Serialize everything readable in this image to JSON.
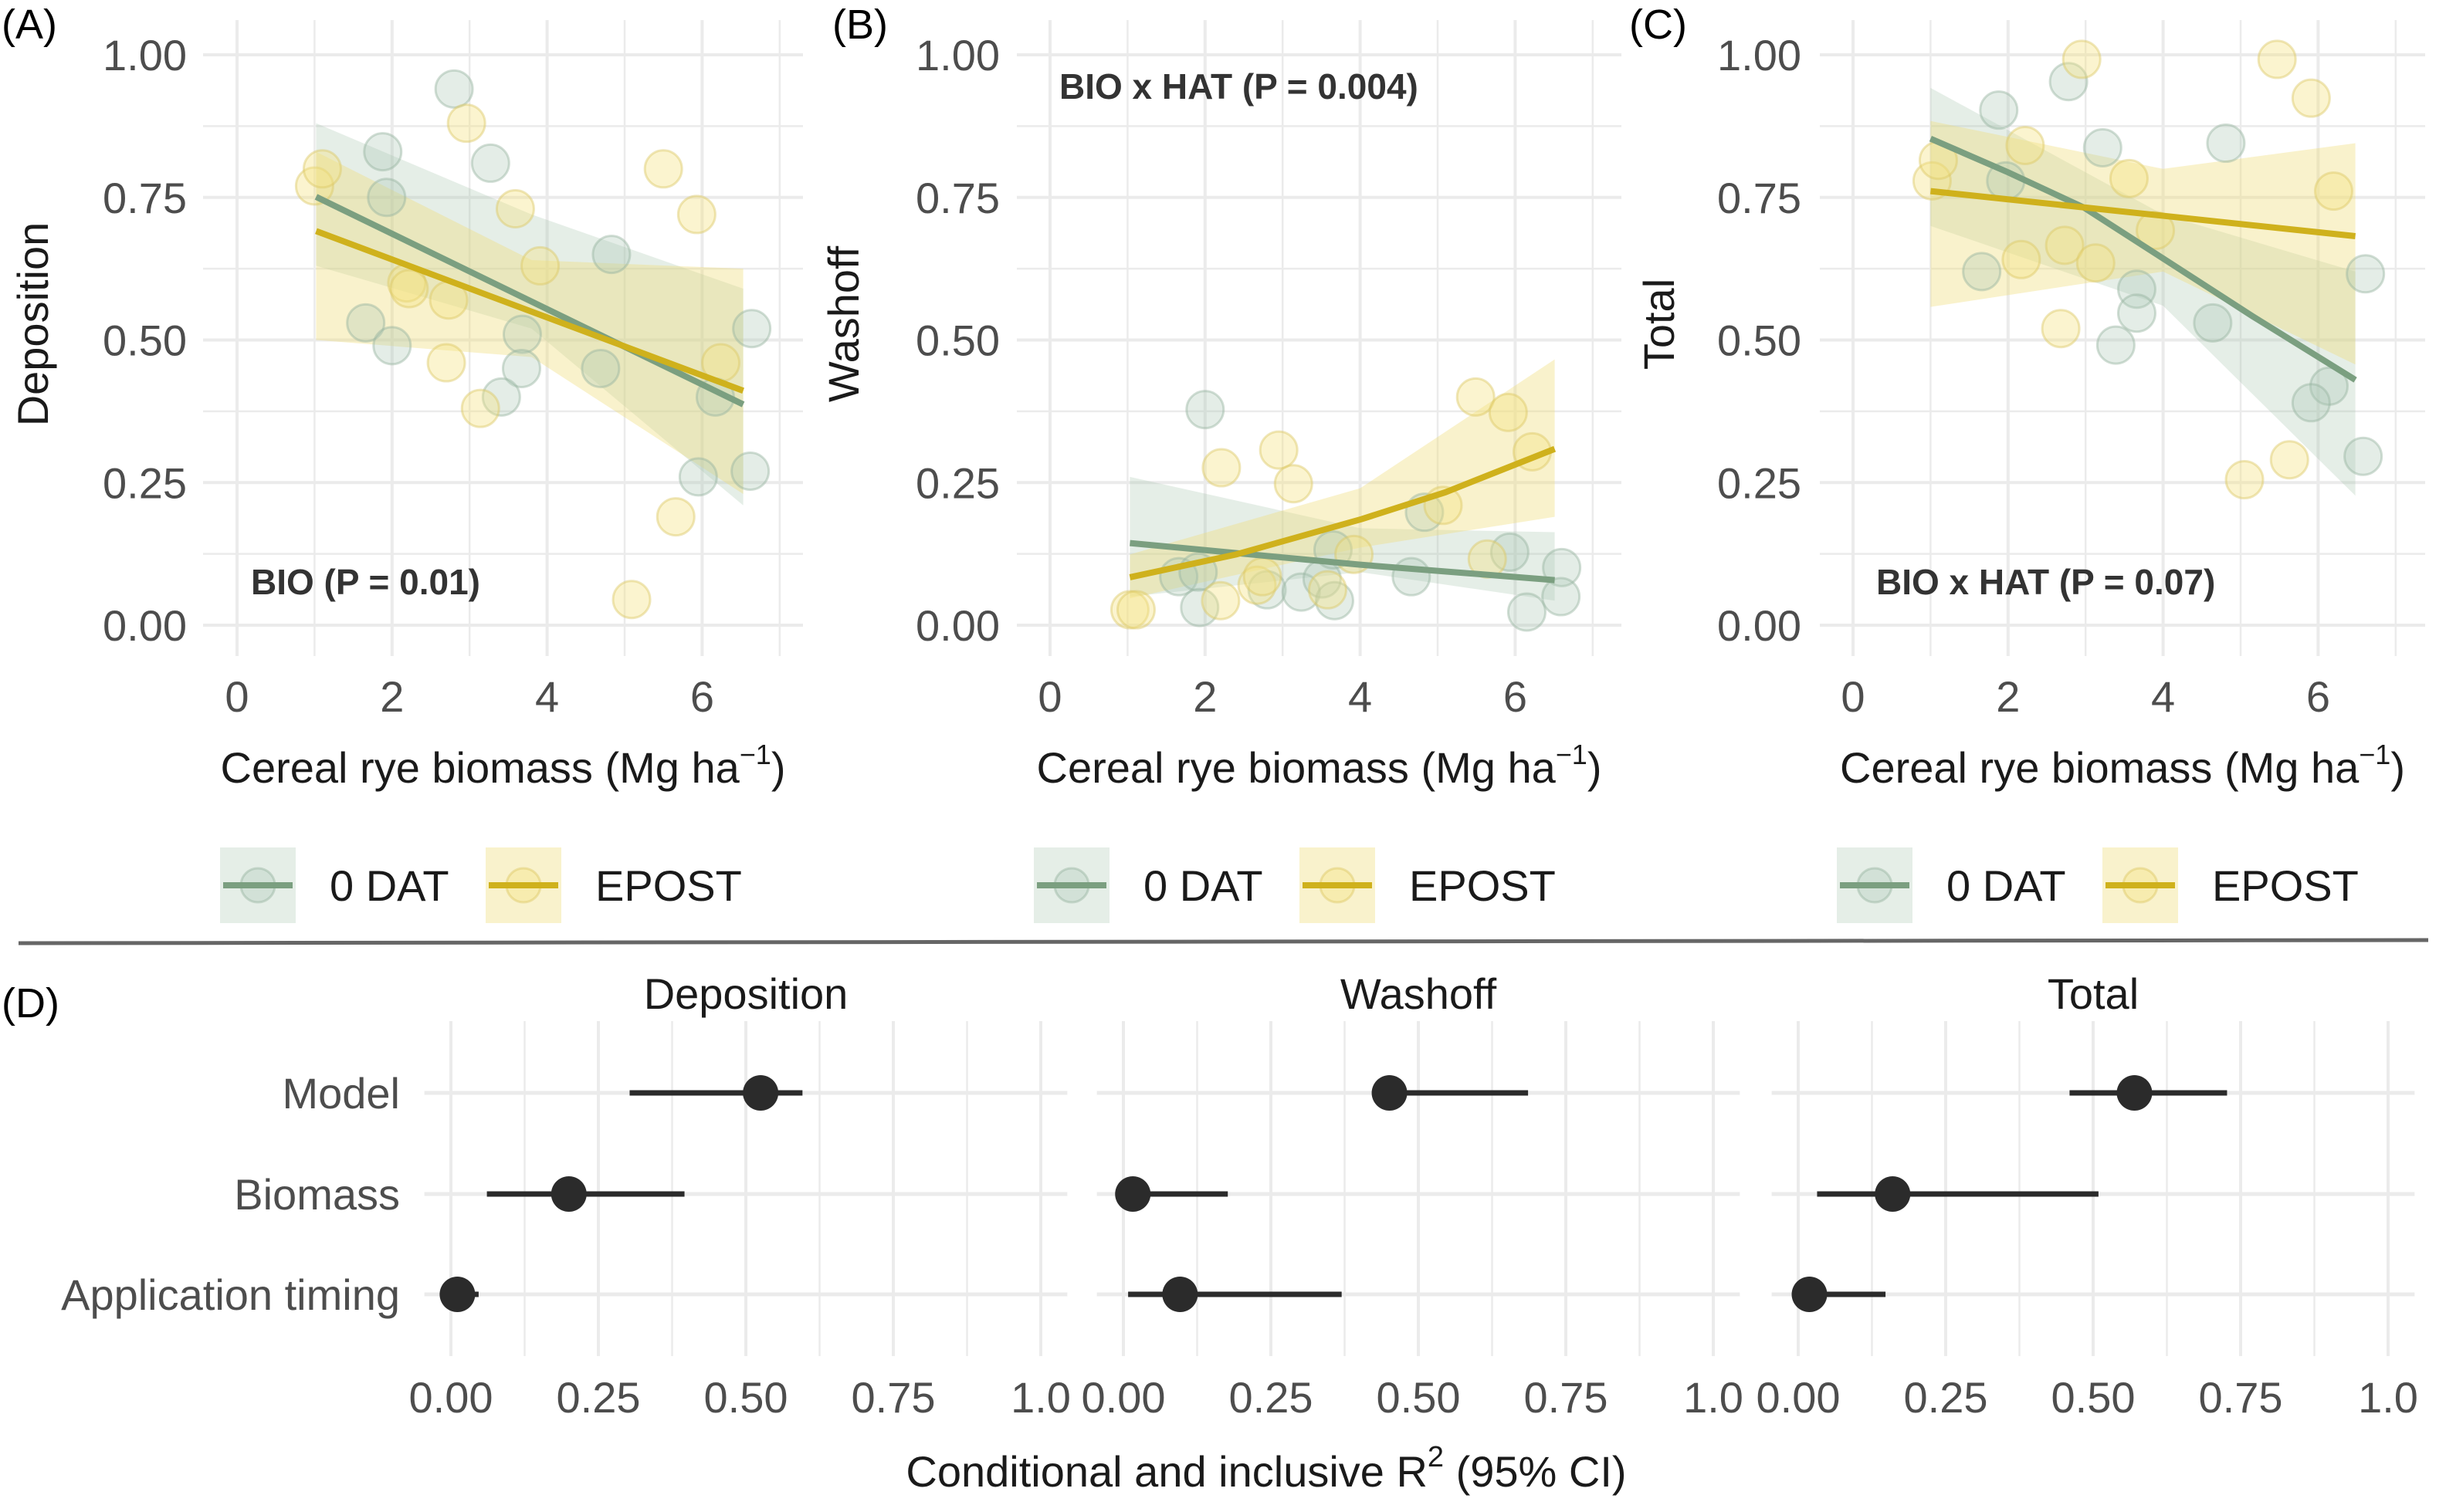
{
  "colors": {
    "0 DAT": "#7b9f80",
    "EPOST": "#cfb11c",
    "point_dark": "#2b2b2b",
    "grid": "#e6e6e6"
  },
  "legend": {
    "labels": [
      "0 DAT",
      "EPOST"
    ]
  },
  "chart_data": [
    {
      "type": "scatter",
      "panel_label": "(A)",
      "ylabel": "Deposition",
      "xlabel": {
        "main": "Cereal rye biomass (Mg ha",
        "sup": "−1",
        "end": ")"
      },
      "annotation": "BIO (P = 0.01)",
      "xlim": [
        -0.45,
        7.3
      ],
      "ylim": [
        -0.06,
        1.05
      ],
      "xticks": [
        "0",
        "2",
        "4",
        "6"
      ],
      "yticks": [
        "0.00",
        "0.25",
        "0.50",
        "0.75",
        "1.00"
      ],
      "grid": true,
      "legend_position": "bottom",
      "series": [
        {
          "name": "0 DAT",
          "points": [
            [
              2.8,
              0.94
            ],
            [
              1.88,
              0.83
            ],
            [
              3.27,
              0.81
            ],
            [
              1.93,
              0.75
            ],
            [
              4.83,
              0.65
            ],
            [
              1.66,
              0.53
            ],
            [
              2.0,
              0.49
            ],
            [
              3.68,
              0.51
            ],
            [
              3.67,
              0.45
            ],
            [
              3.41,
              0.4
            ],
            [
              4.69,
              0.45
            ],
            [
              6.17,
              0.4
            ],
            [
              6.64,
              0.52
            ],
            [
              5.95,
              0.26
            ],
            [
              6.62,
              0.27
            ]
          ],
          "fit": [
            [
              1.02,
              0.751
            ],
            [
              6.53,
              0.387
            ]
          ],
          "ci": [
            [
              1.02,
              0.63,
              0.88
            ],
            [
              3.8,
              0.52,
              0.72
            ],
            [
              6.53,
              0.21,
              0.59
            ]
          ]
        },
        {
          "name": "EPOST",
          "points": [
            [
              1.0,
              0.77
            ],
            [
              1.1,
              0.8
            ],
            [
              2.96,
              0.88
            ],
            [
              3.59,
              0.73
            ],
            [
              5.5,
              0.8
            ],
            [
              5.93,
              0.72
            ],
            [
              3.91,
              0.63
            ],
            [
              2.19,
              0.6
            ],
            [
              2.22,
              0.59
            ],
            [
              2.73,
              0.57
            ],
            [
              2.7,
              0.46
            ],
            [
              3.14,
              0.38
            ],
            [
              6.24,
              0.46
            ],
            [
              5.66,
              0.19
            ],
            [
              5.09,
              0.045
            ]
          ],
          "fit": [
            [
              1.02,
              0.691
            ],
            [
              6.53,
              0.411
            ]
          ],
          "ci": [
            [
              1.02,
              0.5,
              0.83
            ],
            [
              3.8,
              0.47,
              0.64
            ],
            [
              6.53,
              0.23,
              0.625
            ]
          ]
        }
      ]
    },
    {
      "type": "scatter",
      "panel_label": "(B)",
      "ylabel": "Washoff",
      "xlabel": {
        "main": "Cereal rye biomass (Mg ha",
        "sup": "−1",
        "end": ")"
      },
      "annotation": "BIO x HAT (P = 0.004)",
      "xlim": [
        -0.45,
        7.3
      ],
      "ylim": [
        -0.06,
        1.05
      ],
      "xticks": [
        "0",
        "2",
        "4",
        "6"
      ],
      "yticks": [
        "0.00",
        "0.25",
        "0.50",
        "0.75",
        "1.00"
      ],
      "grid": true,
      "legend_position": "bottom",
      "series": [
        {
          "name": "0 DAT",
          "points": [
            [
              2.0,
              0.378
            ],
            [
              1.66,
              0.085
            ],
            [
              1.91,
              0.093
            ],
            [
              1.93,
              0.031
            ],
            [
              2.8,
              0.062
            ],
            [
              3.24,
              0.058
            ],
            [
              3.51,
              0.081
            ],
            [
              3.67,
              0.043
            ],
            [
              3.65,
              0.132
            ],
            [
              4.66,
              0.085
            ],
            [
              4.83,
              0.198
            ],
            [
              5.93,
              0.128
            ],
            [
              6.15,
              0.023
            ],
            [
              6.6,
              0.101
            ],
            [
              6.59,
              0.05
            ]
          ],
          "fit": [
            [
              1.03,
              0.144
            ],
            [
              4.0,
              0.106
            ],
            [
              6.51,
              0.079
            ]
          ],
          "ci": [
            [
              1.03,
              0.05,
              0.26
            ],
            [
              4.0,
              0.093,
              0.17
            ],
            [
              6.51,
              0.043,
              0.163
            ]
          ]
        },
        {
          "name": "EPOST",
          "points": [
            [
              1.03,
              0.027
            ],
            [
              1.11,
              0.027
            ],
            [
              2.21,
              0.276
            ],
            [
              2.95,
              0.307
            ],
            [
              3.14,
              0.248
            ],
            [
              2.2,
              0.043
            ],
            [
              2.67,
              0.07
            ],
            [
              2.74,
              0.085
            ],
            [
              3.58,
              0.062
            ],
            [
              3.92,
              0.124
            ],
            [
              5.07,
              0.21
            ],
            [
              5.49,
              0.4
            ],
            [
              5.91,
              0.373
            ],
            [
              6.22,
              0.304
            ],
            [
              5.64,
              0.116
            ]
          ],
          "fit": [
            [
              1.03,
              0.084
            ],
            [
              2.4,
              0.124
            ],
            [
              4.02,
              0.186
            ],
            [
              5.1,
              0.233
            ],
            [
              6.51,
              0.309
            ]
          ],
          "ci": [
            [
              1.03,
              0.047,
              0.124
            ],
            [
              4.0,
              0.136,
              0.24
            ],
            [
              6.51,
              0.19,
              0.466
            ]
          ]
        }
      ]
    },
    {
      "type": "scatter",
      "panel_label": "(C)",
      "ylabel": "Total",
      "xlabel": {
        "main": "Cereal rye biomass (Mg ha",
        "sup": "−1",
        "end": ")"
      },
      "annotation": "BIO x HAT (P = 0.07)",
      "xlim": [
        -0.45,
        7.3
      ],
      "ylim": [
        -0.06,
        1.05
      ],
      "xticks": [
        "0",
        "2",
        "4",
        "6"
      ],
      "yticks": [
        "0.00",
        "0.25",
        "0.50",
        "0.75",
        "1.00"
      ],
      "grid": true,
      "legend_position": "bottom",
      "series": [
        {
          "name": "0 DAT",
          "points": [
            [
              2.78,
              0.953
            ],
            [
              1.88,
              0.903
            ],
            [
              3.22,
              0.837
            ],
            [
              4.81,
              0.845
            ],
            [
              1.97,
              0.779
            ],
            [
              1.66,
              0.62
            ],
            [
              3.66,
              0.589
            ],
            [
              3.66,
              0.547
            ],
            [
              3.39,
              0.491
            ],
            [
              4.64,
              0.53
            ],
            [
              6.14,
              0.419
            ],
            [
              5.91,
              0.39
            ],
            [
              6.61,
              0.616
            ],
            [
              6.58,
              0.296
            ]
          ],
          "fit": [
            [
              1.0,
              0.853
            ],
            [
              2.0,
              0.794
            ],
            [
              2.98,
              0.732
            ],
            [
              4.0,
              0.643
            ],
            [
              5.15,
              0.542
            ],
            [
              6.48,
              0.43
            ]
          ],
          "ci": [
            [
              1.0,
              0.7,
              0.942
            ],
            [
              4.0,
              0.56,
              0.72
            ],
            [
              6.48,
              0.227,
              0.62
            ]
          ]
        },
        {
          "name": "EPOST",
          "points": [
            [
              2.95,
              0.992
            ],
            [
              5.47,
              0.992
            ],
            [
              5.91,
              0.924
            ],
            [
              1.02,
              0.779
            ],
            [
              1.1,
              0.815
            ],
            [
              2.22,
              0.841
            ],
            [
              3.56,
              0.783
            ],
            [
              3.9,
              0.692
            ],
            [
              6.2,
              0.761
            ],
            [
              2.73,
              0.666
            ],
            [
              2.17,
              0.641
            ],
            [
              3.13,
              0.635
            ],
            [
              2.68,
              0.52
            ],
            [
              5.63,
              0.29
            ],
            [
              5.05,
              0.255
            ]
          ],
          "fit": [
            [
              1.0,
              0.761
            ],
            [
              6.48,
              0.682
            ]
          ],
          "ci": [
            [
              1.0,
              0.558,
              0.884
            ],
            [
              4.0,
              0.62,
              0.8
            ],
            [
              6.48,
              0.457,
              0.845
            ]
          ]
        }
      ]
    },
    {
      "type": "dot-whisker",
      "panel_label": "(D)",
      "xlabel": {
        "main": "Conditional and inclusive R",
        "sup": "2",
        "end": " (95% CI)"
      },
      "categories": [
        "Model",
        "Biomass",
        "Application timing"
      ],
      "xlim": [
        0,
        1
      ],
      "xticks": [
        "0.00",
        "0.25",
        "0.50",
        "0.75",
        "1.0"
      ],
      "grid": true,
      "facets": [
        {
          "title": "Deposition",
          "values": [
            0.525,
            0.2,
            0.011
          ],
          "ci_low": [
            0.303,
            0.061,
            0.0
          ],
          "ci_high": [
            0.596,
            0.396,
            0.047
          ]
        },
        {
          "title": "Washoff",
          "values": [
            0.451,
            0.016,
            0.096
          ],
          "ci_low": [
            0.451,
            0.016,
            0.008
          ],
          "ci_high": [
            0.686,
            0.177,
            0.37
          ]
        },
        {
          "title": "Total",
          "values": [
            0.57,
            0.16,
            0.019
          ],
          "ci_low": [
            0.46,
            0.032,
            0.019
          ],
          "ci_high": [
            0.727,
            0.509,
            0.148
          ]
        }
      ]
    }
  ]
}
